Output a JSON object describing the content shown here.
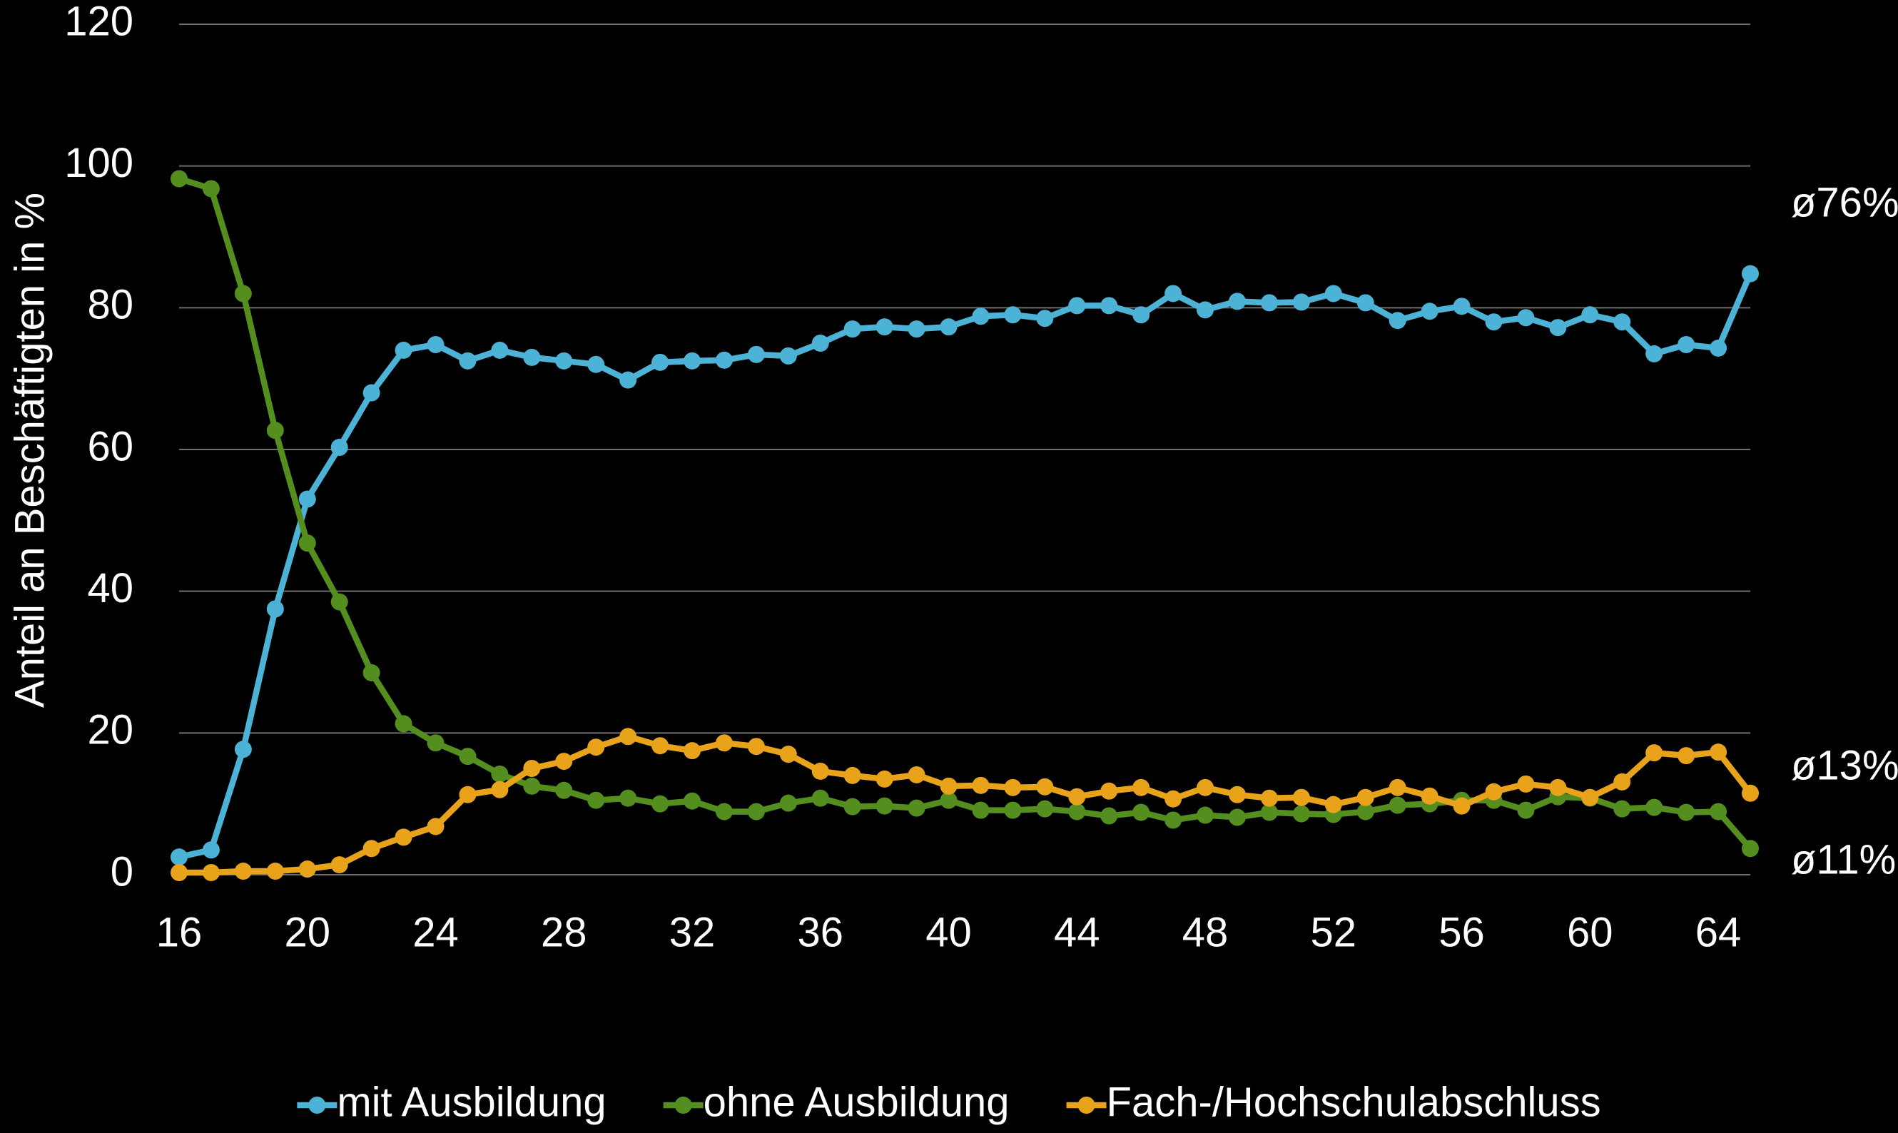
{
  "chart_data": {
    "type": "line",
    "y_label": "Anteil an Beschäftigten in %",
    "x": [
      16,
      17,
      18,
      19,
      20,
      21,
      22,
      23,
      24,
      25,
      26,
      27,
      28,
      29,
      30,
      31,
      32,
      33,
      34,
      35,
      36,
      37,
      38,
      39,
      40,
      41,
      42,
      43,
      44,
      45,
      46,
      47,
      48,
      49,
      50,
      51,
      52,
      53,
      54,
      55,
      56,
      57,
      58,
      59,
      60,
      61,
      62,
      63,
      64,
      65
    ],
    "series": [
      {
        "name": "mit Ausbildung",
        "color": "#4db3d6",
        "values": [
          2.5,
          3.5,
          17.7,
          37.5,
          53,
          60.3,
          68,
          74,
          74.8,
          72.5,
          74,
          73,
          72.5,
          72,
          69.8,
          72.3,
          72.5,
          72.6,
          73.4,
          73.2,
          75,
          77,
          77.3,
          77,
          77.3,
          78.8,
          79,
          78.5,
          80.3,
          80.3,
          79,
          82,
          79.7,
          80.9,
          80.7,
          80.8,
          82,
          80.7,
          78.2,
          79.5,
          80.2,
          78,
          78.6,
          77.2,
          79,
          78,
          73.5,
          74.8,
          74.3,
          84.8
        ]
      },
      {
        "name": "ohne Ausbildung",
        "color": "#548e1e",
        "values": [
          98.2,
          96.8,
          82,
          62.7,
          46.8,
          38.5,
          28.5,
          21.3,
          18.6,
          16.7,
          14.2,
          12.5,
          11.9,
          10.5,
          10.8,
          10,
          10.4,
          8.9,
          8.9,
          10.1,
          10.8,
          9.6,
          9.7,
          9.4,
          10.5,
          9.1,
          9.1,
          9.3,
          8.9,
          8.3,
          8.8,
          7.7,
          8.4,
          8.1,
          8.8,
          8.6,
          8.5,
          8.9,
          9.8,
          10,
          10.5,
          10.5,
          9.1,
          11,
          10.8,
          9.3,
          9.5,
          8.8,
          8.9,
          3.7
        ]
      },
      {
        "name": "Fach-/Hochschulabschluss",
        "color": "#e8a31a",
        "values": [
          0.3,
          0.3,
          0.5,
          0.5,
          0.8,
          1.4,
          3.7,
          5.3,
          6.8,
          11.3,
          12,
          15,
          16,
          18,
          19.5,
          18.2,
          17.5,
          18.6,
          18.1,
          17,
          14.6,
          14,
          13.5,
          14.1,
          12.5,
          12.6,
          12.3,
          12.4,
          11,
          11.8,
          12.3,
          10.7,
          12.3,
          11.3,
          10.8,
          10.9,
          9.9,
          10.9,
          12.3,
          11.1,
          9.7,
          11.7,
          12.8,
          12.3,
          10.9,
          13.1,
          17.2,
          16.8,
          17.3,
          11.5
        ]
      }
    ],
    "annotations": [
      "ø76%",
      "ø13%",
      "ø11%"
    ],
    "xlim": [
      16,
      65
    ],
    "xticks": [
      16,
      20,
      24,
      28,
      32,
      36,
      40,
      44,
      48,
      52,
      56,
      60,
      64
    ],
    "ylim": [
      0,
      120
    ],
    "yticks": [
      0,
      20,
      40,
      60,
      80,
      100,
      120
    ],
    "grid": true,
    "legend": "bottom"
  }
}
